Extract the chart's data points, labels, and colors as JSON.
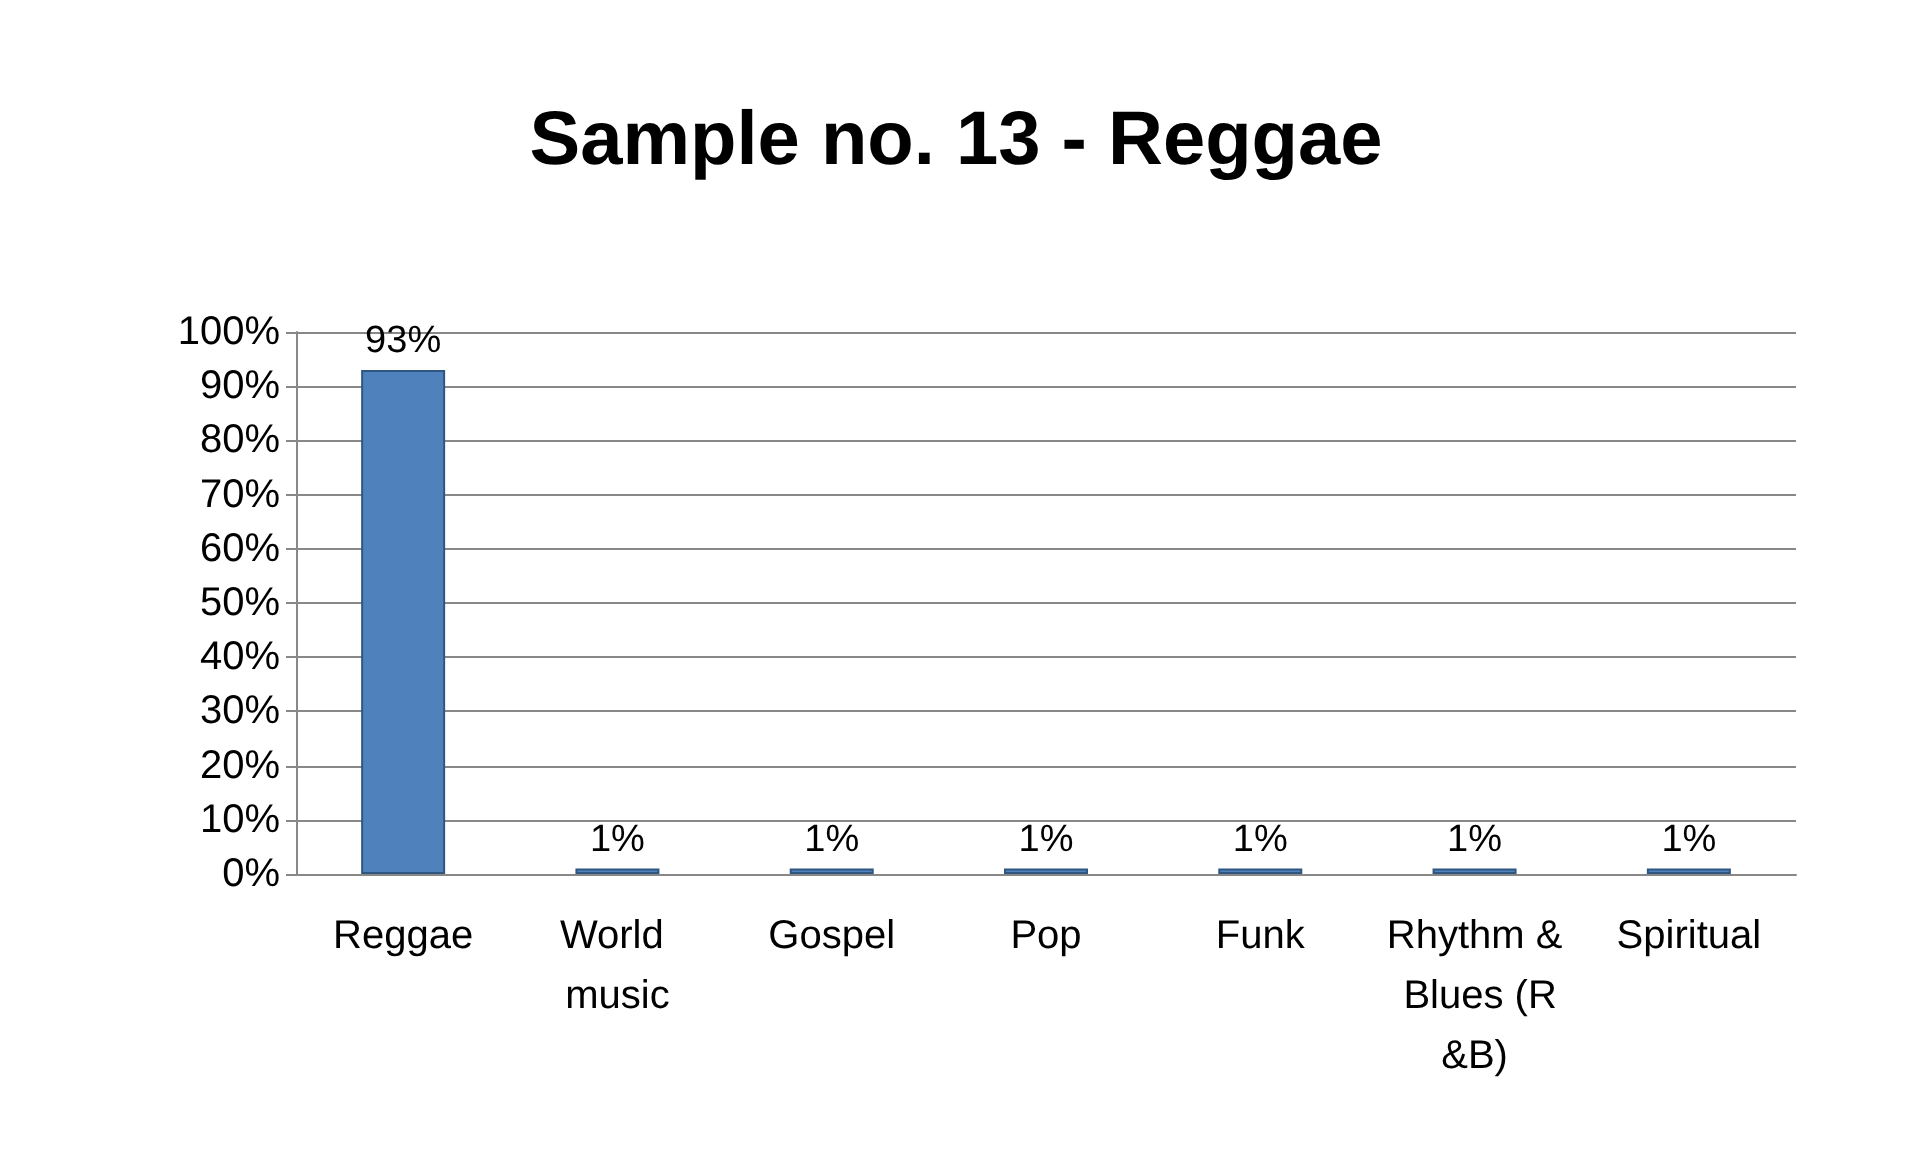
{
  "chart_data": {
    "type": "bar",
    "title": "Sample no. 13 - Reggae",
    "categories": [
      "Reggae",
      "World music",
      "Gospel",
      "Pop",
      "Funk",
      "Rhythm & Blues (R&B)",
      "Spiritual"
    ],
    "values": [
      93,
      1,
      1,
      1,
      1,
      1,
      1
    ],
    "color": "#4f81bd",
    "value_labels": [
      "93%",
      "1%",
      "1%",
      "1%",
      "1%",
      "1%",
      "1%"
    ],
    "ylim": [
      0,
      100
    ],
    "yticks": [
      {
        "value": 0,
        "label": "0%"
      },
      {
        "value": 10,
        "label": "10%"
      },
      {
        "value": 20,
        "label": "20%"
      },
      {
        "value": 30,
        "label": "30%"
      },
      {
        "value": 40,
        "label": "40%"
      },
      {
        "value": 50,
        "label": "50%"
      },
      {
        "value": 60,
        "label": "60%"
      },
      {
        "value": 70,
        "label": "70%"
      },
      {
        "value": 80,
        "label": "80%"
      },
      {
        "value": 90,
        "label": "90%"
      },
      {
        "value": 100,
        "label": "100%"
      }
    ],
    "grid": true
  }
}
